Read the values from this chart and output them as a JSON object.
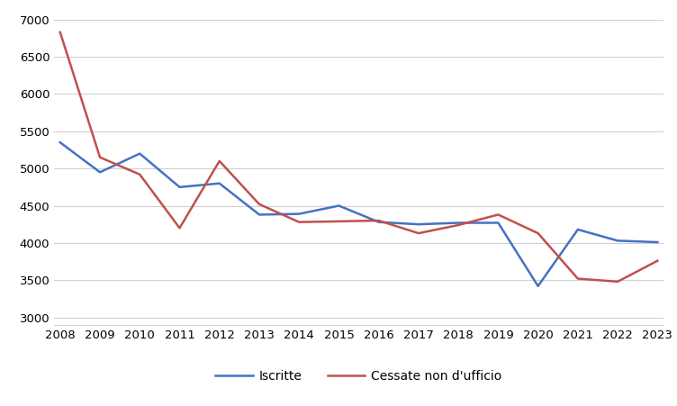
{
  "years": [
    2008,
    2009,
    2010,
    2011,
    2012,
    2013,
    2014,
    2015,
    2016,
    2017,
    2018,
    2019,
    2020,
    2021,
    2022,
    2023
  ],
  "iscritte": [
    5350,
    4950,
    5200,
    4750,
    4800,
    4380,
    4390,
    4500,
    4280,
    4250,
    4270,
    4270,
    3420,
    4180,
    4030,
    4010
  ],
  "cessate": [
    6830,
    5150,
    4920,
    4200,
    5100,
    4520,
    4280,
    4290,
    4300,
    4130,
    4240,
    4380,
    4130,
    3520,
    3480,
    3760
  ],
  "line_color_iscritte": "#4472C4",
  "line_color_cessate": "#C0504D",
  "legend_iscritte": "Iscritte",
  "legend_cessate": "Cessate non d'ufficio",
  "ylim": [
    2900,
    7100
  ],
  "yticks": [
    3000,
    3500,
    4000,
    4500,
    5000,
    5500,
    6000,
    6500,
    7000
  ],
  "background_color": "#ffffff",
  "grid_color": "#d0d0d0"
}
